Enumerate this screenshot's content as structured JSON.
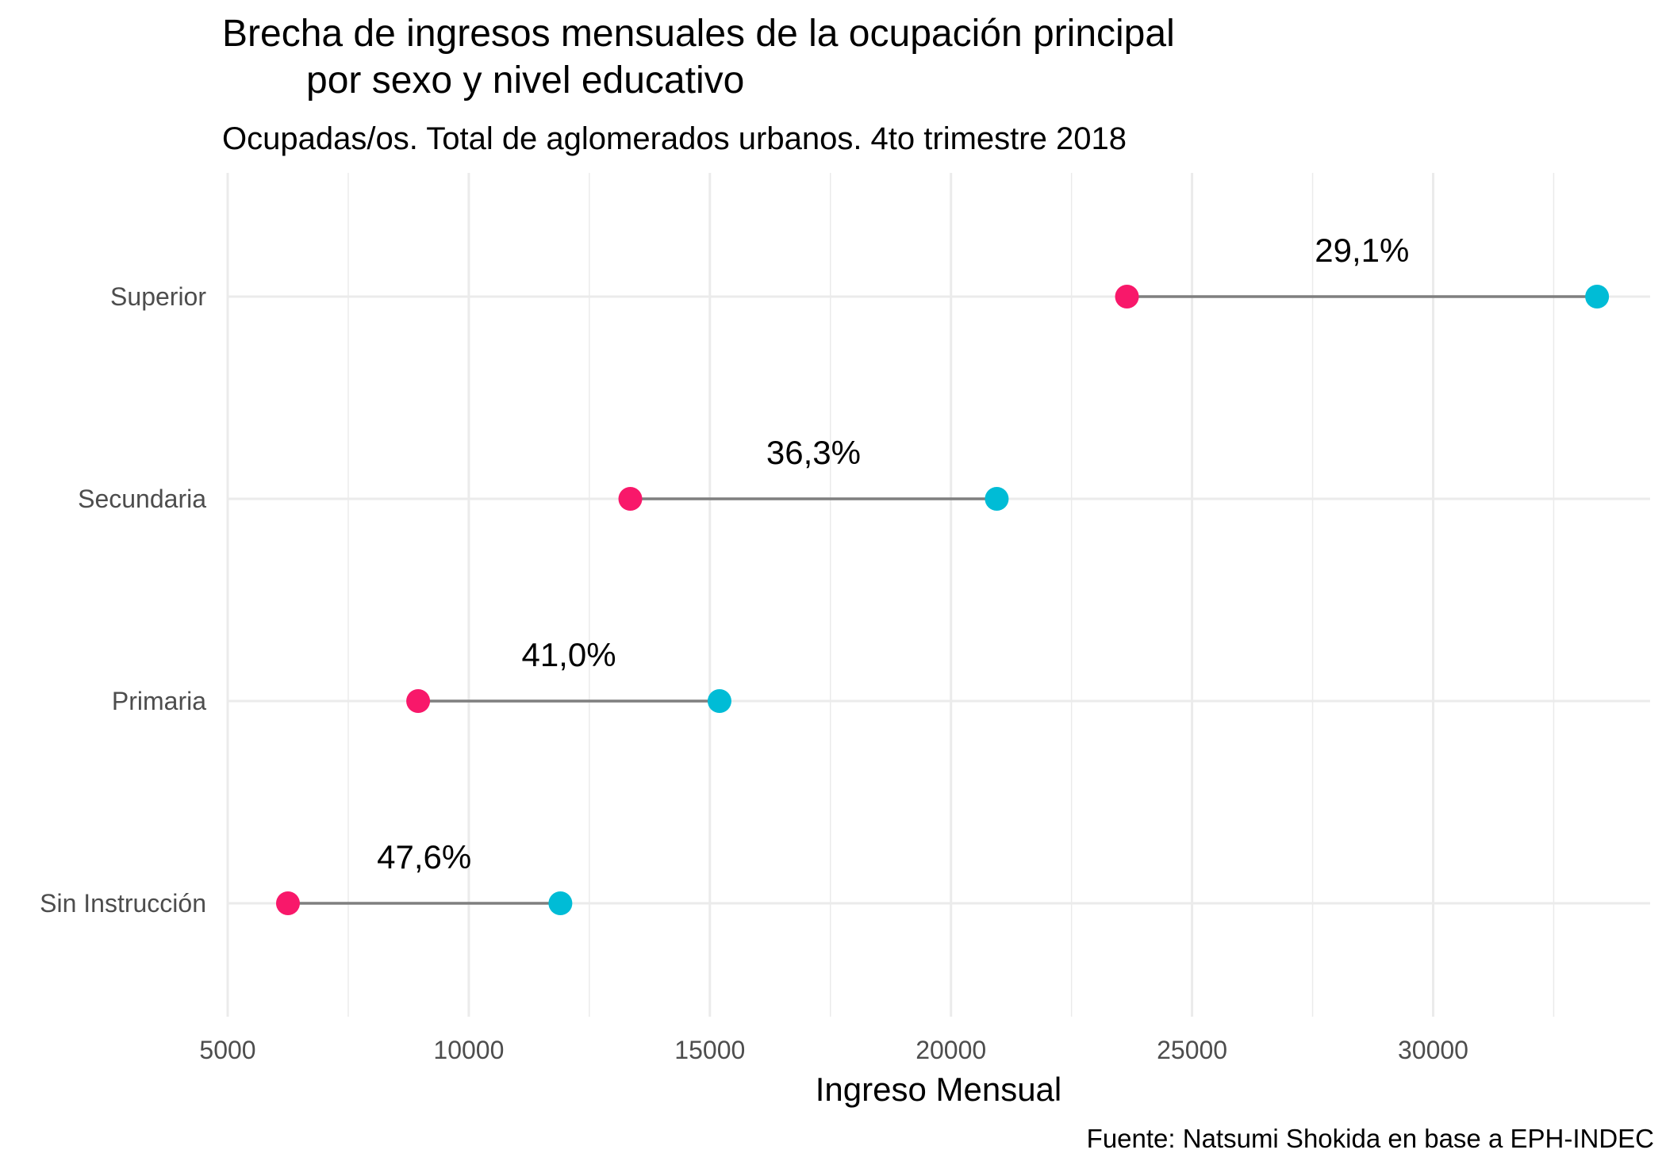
{
  "chart_data": {
    "type": "dumbbell",
    "title_lines": [
      "Brecha de ingresos mensuales de la ocupación principal",
      "por sexo y nivel educativo"
    ],
    "subtitle": "Ocupadas/os. Total de aglomerados urbanos. 4to trimestre 2018",
    "caption": "Fuente: Natsumi Shokida en base a EPH-INDEC",
    "xlabel": "Ingreso Mensual",
    "ylabel": "",
    "xlim": [
      5000,
      34500
    ],
    "x_ticks": [
      5000,
      10000,
      15000,
      20000,
      25000,
      30000
    ],
    "x_tick_labels": [
      "5000",
      "10000",
      "15000",
      "20000",
      "25000",
      "30000"
    ],
    "grid": true,
    "legend": "none",
    "colors": {
      "low": "#f8186a",
      "high": "#00bcd6",
      "segment": "#7f7f7f"
    },
    "categories": [
      "Superior",
      "Secundaria",
      "Primaria",
      "Sin Instrucción"
    ],
    "low_values": [
      23650,
      13350,
      8950,
      6250
    ],
    "high_values": [
      33400,
      20950,
      15200,
      11900
    ],
    "gap_labels": [
      "29,1%",
      "36,3%",
      "41,0%",
      "47,6%"
    ]
  }
}
